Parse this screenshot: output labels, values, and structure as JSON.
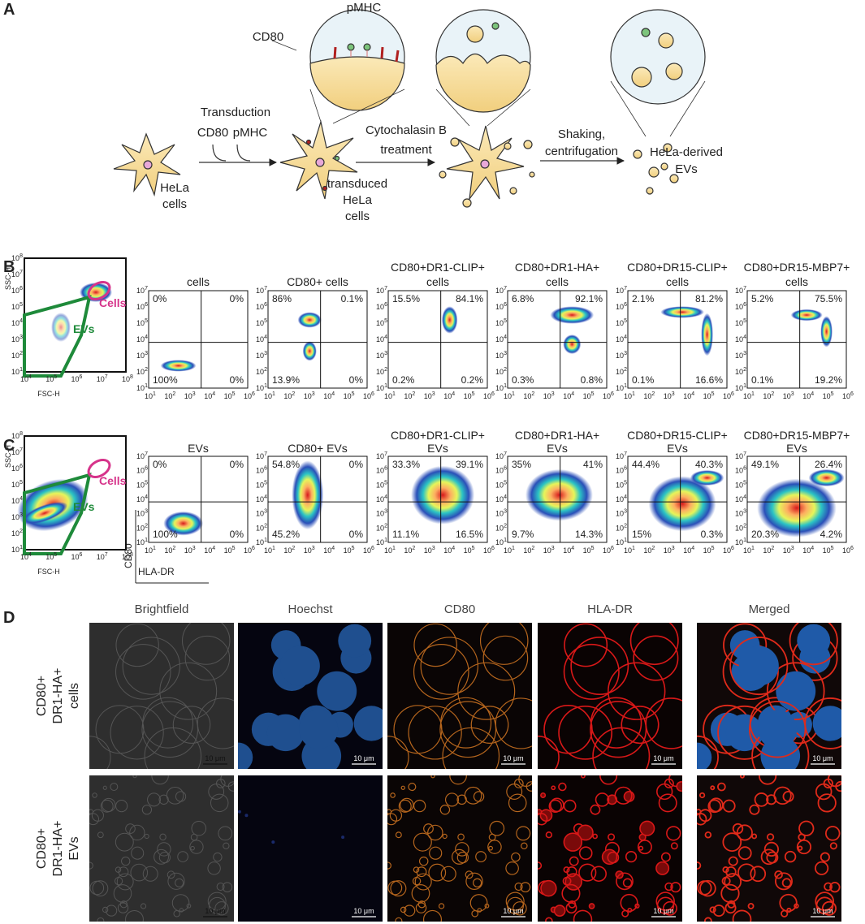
{
  "panel_labels": [
    "A",
    "B",
    "C",
    "D"
  ],
  "panel_a": {
    "pmhc": "pMHC",
    "cd80": "CD80",
    "transduction": "Transduction",
    "transduction_cd80": "CD80",
    "transduction_pmhc": "pMHC",
    "hela_cells": [
      "HeLa",
      "cells"
    ],
    "transduced": [
      "transduced",
      "HeLa",
      "cells"
    ],
    "treatment": [
      "Cytochalasin B",
      "treatment"
    ],
    "shaking": [
      "Shaking,",
      "centrifugation"
    ],
    "evs": [
      "HeLa-derived",
      "EVs"
    ]
  },
  "axes": {
    "base": "10",
    "gate_x_exponents": [
      "4",
      "5",
      "6",
      "7",
      "8"
    ],
    "gate_y_exponents": [
      "1",
      "2",
      "3",
      "4",
      "5",
      "6",
      "7",
      "8"
    ],
    "plot_x_exponents": [
      "1",
      "2",
      "3",
      "4",
      "5",
      "6"
    ],
    "plot_y_exponents": [
      "1",
      "2",
      "3",
      "4",
      "5",
      "6",
      "7"
    ]
  },
  "panel_b": {
    "gate": {
      "x_label": "FSC-H",
      "y_label": "SSC-H",
      "cells": "Cells",
      "evs": "EVs"
    },
    "plots": [
      {
        "title": [
          "cells"
        ],
        "quadrants": [
          "0%",
          "0%",
          "100%",
          "0%"
        ]
      },
      {
        "title": [
          "CD80+ cells"
        ],
        "quadrants": [
          "86%",
          "0.1%",
          "13.9%",
          "0%"
        ]
      },
      {
        "title": [
          "CD80+DR1-CLIP+",
          "cells"
        ],
        "quadrants": [
          "15.5%",
          "84.1%",
          "0.2%",
          "0.2%"
        ]
      },
      {
        "title": [
          "CD80+DR1-HA+",
          "cells"
        ],
        "quadrants": [
          "6.8%",
          "92.1%",
          "0.3%",
          "0.8%"
        ]
      },
      {
        "title": [
          "CD80+DR15-CLIP+",
          "cells"
        ],
        "quadrants": [
          "2.1%",
          "81.2%",
          "0.1%",
          "16.6%"
        ]
      },
      {
        "title": [
          "CD80+DR15-MBP7+",
          "cells"
        ],
        "quadrants": [
          "5.2%",
          "75.5%",
          "0.1%",
          "19.2%"
        ]
      }
    ]
  },
  "panel_c": {
    "gate": {
      "x_label": "FSC-H",
      "y_label": "SSC-H",
      "cells": "Cells",
      "evs": "EVs"
    },
    "key_y": "CD80",
    "key_x": "HLA-DR",
    "plots": [
      {
        "title": [
          "EVs"
        ],
        "quadrants": [
          "0%",
          "0%",
          "100%",
          "0%"
        ]
      },
      {
        "title": [
          "CD80+ EVs"
        ],
        "quadrants": [
          "54.8%",
          "0%",
          "45.2%",
          "0%"
        ]
      },
      {
        "title": [
          "CD80+DR1-CLIP+",
          "EVs"
        ],
        "quadrants": [
          "33.3%",
          "39.1%",
          "11.1%",
          "16.5%"
        ]
      },
      {
        "title": [
          "CD80+DR1-HA+",
          "EVs"
        ],
        "quadrants": [
          "35%",
          "41%",
          "9.7%",
          "14.3%"
        ]
      },
      {
        "title": [
          "CD80+DR15-CLIP+",
          "EVs"
        ],
        "quadrants": [
          "44.4%",
          "40.3%",
          "15%",
          "0.3%"
        ]
      },
      {
        "title": [
          "CD80+DR15-MBP7+",
          "EVs"
        ],
        "quadrants": [
          "49.1%",
          "26.4%",
          "20.3%",
          "4.2%"
        ]
      }
    ]
  },
  "panel_d": {
    "columns": [
      "Brightfield",
      "Hoechst",
      "CD80",
      "HLA-DR",
      "Merged"
    ],
    "rows": [
      [
        "CD80+",
        "DR1-HA+",
        "cells"
      ],
      [
        "CD80+",
        "DR1-HA+",
        "EVs"
      ]
    ],
    "scale_bar": "10 μm"
  }
}
